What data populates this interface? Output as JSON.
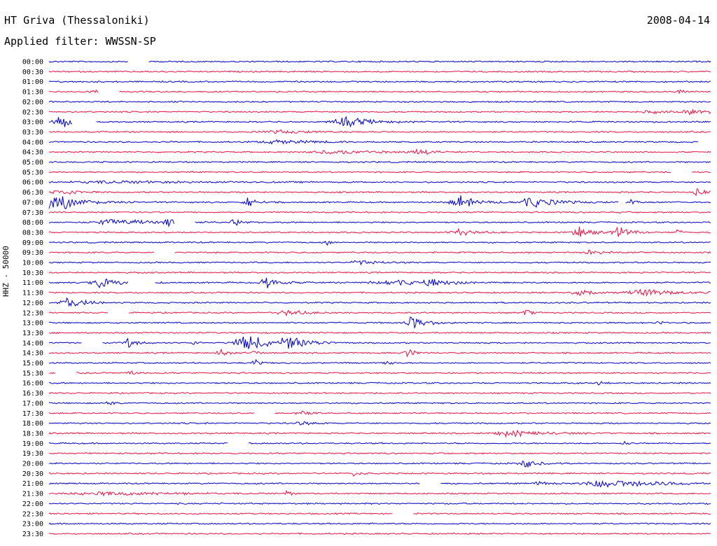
{
  "header": {
    "station": "HT Griva (Thessaloniki)",
    "date": "2008-04-14",
    "filter": "Applied filter: WWSSN-SP"
  },
  "chart_data": {
    "type": "line",
    "title": "HT Griva (Thessaloniki)",
    "subtitle": "Applied filter: WWSSN-SP",
    "ylabel": "HHZ - 50000",
    "row_colors": [
      "#0000cc",
      "#ee1144"
    ],
    "rows": [
      {
        "time": "00:00",
        "events": [],
        "gaps": [
          [
            0.12,
            0.15
          ]
        ]
      },
      {
        "time": "00:30",
        "events": [],
        "gaps": []
      },
      {
        "time": "01:00",
        "events": [],
        "gaps": []
      },
      {
        "time": "01:30",
        "events": [
          {
            "t": 0.07,
            "a": 0.3,
            "w": 0.015
          },
          {
            "t": 0.95,
            "a": 0.3,
            "w": 0.01
          }
        ],
        "gaps": [
          [
            0.075,
            0.105
          ]
        ]
      },
      {
        "time": "02:00",
        "events": [],
        "gaps": []
      },
      {
        "time": "02:30",
        "events": [
          {
            "t": 0.91,
            "a": 0.25,
            "w": 0.02
          },
          {
            "t": 0.97,
            "a": 0.6,
            "w": 0.02
          }
        ],
        "gaps": []
      },
      {
        "time": "03:00",
        "events": [
          {
            "t": 0.015,
            "a": 1.6,
            "w": 0.012
          },
          {
            "t": 0.45,
            "a": 0.9,
            "w": 0.03
          }
        ],
        "gaps": [
          [
            0.035,
            0.07
          ]
        ]
      },
      {
        "time": "03:30",
        "events": [
          {
            "t": 0.35,
            "a": 0.25,
            "w": 0.04
          }
        ],
        "gaps": []
      },
      {
        "time": "04:00",
        "events": [
          {
            "t": 0.35,
            "a": 0.3,
            "w": 0.05
          }
        ],
        "gaps": [
          [
            0.98,
            1.0
          ]
        ]
      },
      {
        "time": "04:30",
        "events": [
          {
            "t": 0.43,
            "a": 0.35,
            "w": 0.05
          },
          {
            "t": 0.56,
            "a": 0.5,
            "w": 0.02
          }
        ],
        "gaps": []
      },
      {
        "time": "05:00",
        "events": [],
        "gaps": []
      },
      {
        "time": "05:30",
        "events": [],
        "gaps": [
          [
            0.94,
            0.97
          ]
        ]
      },
      {
        "time": "06:00",
        "events": [
          {
            "t": 0.1,
            "a": 0.2,
            "w": 0.1
          }
        ],
        "gaps": []
      },
      {
        "time": "06:30",
        "events": [
          {
            "t": 0.015,
            "a": 0.8,
            "w": 0.015
          },
          {
            "t": 0.98,
            "a": 1.0,
            "w": 0.01
          }
        ],
        "gaps": []
      },
      {
        "time": "07:00",
        "events": [
          {
            "t": 0.01,
            "a": 1.6,
            "w": 0.03
          },
          {
            "t": 0.3,
            "a": 1.2,
            "w": 0.01
          },
          {
            "t": 0.62,
            "a": 1.2,
            "w": 0.02
          },
          {
            "t": 0.73,
            "a": 1.0,
            "w": 0.03
          },
          {
            "t": 0.88,
            "a": 0.8,
            "w": 0.005
          }
        ],
        "gaps": [
          [
            0.86,
            0.87
          ]
        ]
      },
      {
        "time": "07:30",
        "events": [],
        "gaps": []
      },
      {
        "time": "08:00",
        "events": [
          {
            "t": 0.1,
            "a": 0.6,
            "w": 0.04
          },
          {
            "t": 0.18,
            "a": 0.8,
            "w": 0.01
          },
          {
            "t": 0.28,
            "a": 0.6,
            "w": 0.01
          }
        ],
        "gaps": [
          [
            0.19,
            0.22
          ]
        ]
      },
      {
        "time": "08:30",
        "events": [
          {
            "t": 0.62,
            "a": 0.6,
            "w": 0.02
          },
          {
            "t": 0.8,
            "a": 0.9,
            "w": 0.02
          },
          {
            "t": 0.86,
            "a": 0.9,
            "w": 0.015
          },
          {
            "t": 0.95,
            "a": 0.6,
            "w": 0.005
          }
        ],
        "gaps": []
      },
      {
        "time": "09:00",
        "events": [
          {
            "t": 0.42,
            "a": 0.4,
            "w": 0.005
          }
        ],
        "gaps": []
      },
      {
        "time": "09:30",
        "events": [
          {
            "t": 0.82,
            "a": 0.4,
            "w": 0.02
          }
        ],
        "gaps": [
          [
            0.16,
            0.19
          ]
        ]
      },
      {
        "time": "10:00",
        "events": [
          {
            "t": 0.47,
            "a": 0.5,
            "w": 0.02
          }
        ],
        "gaps": []
      },
      {
        "time": "10:30",
        "events": [],
        "gaps": []
      },
      {
        "time": "11:00",
        "events": [
          {
            "t": 0.08,
            "a": 0.9,
            "w": 0.025
          },
          {
            "t": 0.33,
            "a": 1.0,
            "w": 0.015
          },
          {
            "t": 0.52,
            "a": 0.5,
            "w": 0.05
          },
          {
            "t": 0.58,
            "a": 0.9,
            "w": 0.015
          }
        ],
        "gaps": [
          [
            0.12,
            0.16
          ]
        ]
      },
      {
        "time": "11:30",
        "events": [
          {
            "t": 0.8,
            "a": 1.2,
            "w": 0.015
          },
          {
            "t": 0.9,
            "a": 0.6,
            "w": 0.04
          }
        ],
        "gaps": []
      },
      {
        "time": "12:00",
        "events": [
          {
            "t": 0.03,
            "a": 1.0,
            "w": 0.02
          }
        ],
        "gaps": []
      },
      {
        "time": "12:30",
        "events": [
          {
            "t": 0.36,
            "a": 0.6,
            "w": 0.02
          },
          {
            "t": 0.72,
            "a": 0.9,
            "w": 0.005
          }
        ],
        "gaps": [
          [
            0.09,
            0.12
          ]
        ]
      },
      {
        "time": "13:00",
        "events": [
          {
            "t": 0.55,
            "a": 1.0,
            "w": 0.02
          },
          {
            "t": 0.92,
            "a": 0.4,
            "w": 0.005
          }
        ],
        "gaps": []
      },
      {
        "time": "13:30",
        "events": [],
        "gaps": []
      },
      {
        "time": "14:00",
        "events": [
          {
            "t": 0.12,
            "a": 0.9,
            "w": 0.01
          },
          {
            "t": 0.22,
            "a": 0.8,
            "w": 0.005
          },
          {
            "t": 0.3,
            "a": 1.5,
            "w": 0.03
          },
          {
            "t": 0.36,
            "a": 1.2,
            "w": 0.02
          }
        ],
        "gaps": [
          [
            0.05,
            0.08
          ]
        ]
      },
      {
        "time": "14:30",
        "events": [
          {
            "t": 0.26,
            "a": 0.8,
            "w": 0.01
          },
          {
            "t": 0.31,
            "a": 0.6,
            "w": 0.005
          },
          {
            "t": 0.54,
            "a": 0.9,
            "w": 0.01
          }
        ],
        "gaps": []
      },
      {
        "time": "15:00",
        "events": [
          {
            "t": 0.31,
            "a": 0.8,
            "w": 0.005
          },
          {
            "t": 0.51,
            "a": 0.8,
            "w": 0.005
          }
        ],
        "gaps": []
      },
      {
        "time": "15:30",
        "events": [
          {
            "t": 0.12,
            "a": 0.6,
            "w": 0.005
          }
        ],
        "gaps": [
          [
            0.01,
            0.04
          ]
        ]
      },
      {
        "time": "16:00",
        "events": [
          {
            "t": 0.83,
            "a": 0.4,
            "w": 0.005
          }
        ],
        "gaps": []
      },
      {
        "time": "16:30",
        "events": [],
        "gaps": []
      },
      {
        "time": "17:00",
        "events": [
          {
            "t": 0.09,
            "a": 0.7,
            "w": 0.005
          }
        ],
        "gaps": []
      },
      {
        "time": "17:30",
        "events": [
          {
            "t": 0.38,
            "a": 0.5,
            "w": 0.01
          }
        ],
        "gaps": [
          [
            0.31,
            0.34
          ]
        ]
      },
      {
        "time": "18:00",
        "events": [
          {
            "t": 0.38,
            "a": 0.4,
            "w": 0.01
          }
        ],
        "gaps": []
      },
      {
        "time": "18:30",
        "events": [
          {
            "t": 0.7,
            "a": 0.6,
            "w": 0.04
          }
        ],
        "gaps": []
      },
      {
        "time": "19:00",
        "events": [
          {
            "t": 0.87,
            "a": 0.4,
            "w": 0.005
          }
        ],
        "gaps": [
          [
            0.27,
            0.3
          ]
        ]
      },
      {
        "time": "19:30",
        "events": [],
        "gaps": []
      },
      {
        "time": "20:00",
        "events": [
          {
            "t": 0.72,
            "a": 0.8,
            "w": 0.015
          }
        ],
        "gaps": []
      },
      {
        "time": "20:30",
        "events": [
          {
            "t": 0.46,
            "a": 0.4,
            "w": 0.01
          }
        ],
        "gaps": []
      },
      {
        "time": "21:00",
        "events": [
          {
            "t": 0.74,
            "a": 0.5,
            "w": 0.01
          },
          {
            "t": 0.85,
            "a": 0.8,
            "w": 0.06
          }
        ],
        "gaps": [
          [
            0.56,
            0.59
          ]
        ]
      },
      {
        "time": "21:30",
        "events": [
          {
            "t": 0.36,
            "a": 0.7,
            "w": 0.005
          },
          {
            "t": 0.09,
            "a": 0.3,
            "w": 0.08
          }
        ],
        "gaps": []
      },
      {
        "time": "22:00",
        "events": [],
        "gaps": []
      },
      {
        "time": "22:30",
        "events": [],
        "gaps": [
          [
            0.52,
            0.55
          ]
        ]
      },
      {
        "time": "23:00",
        "events": [],
        "gaps": []
      },
      {
        "time": "23:30",
        "events": [],
        "gaps": []
      }
    ]
  }
}
